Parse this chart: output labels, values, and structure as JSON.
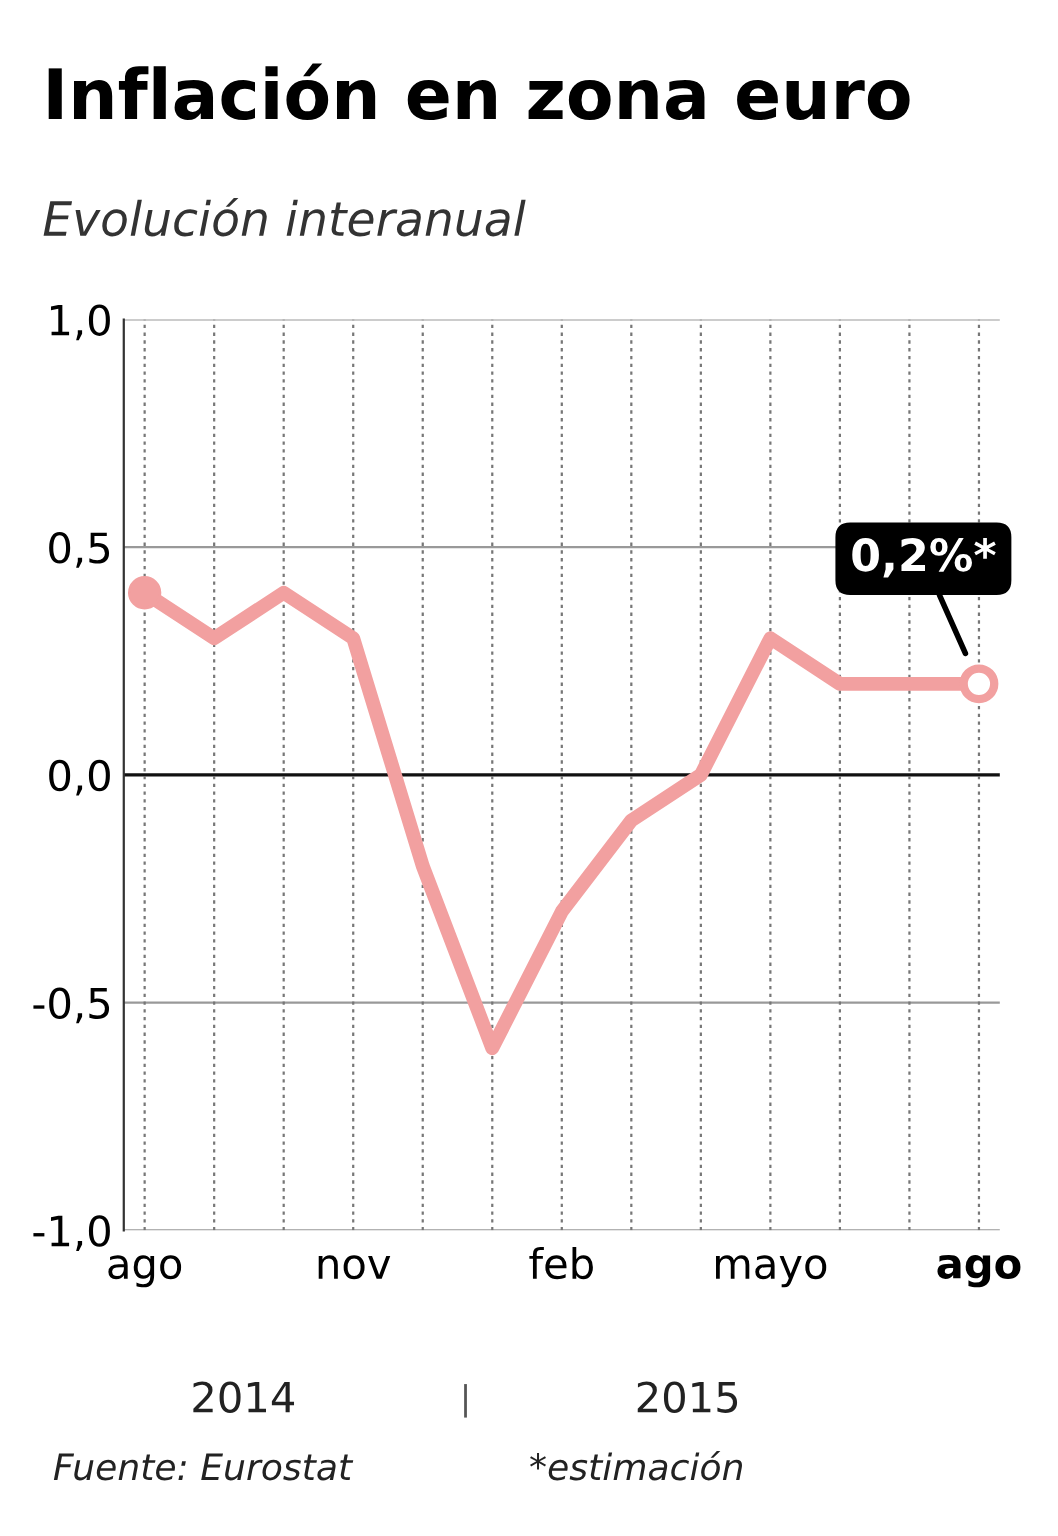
{
  "chart_data": {
    "type": "line",
    "title": "Inflación en zona euro",
    "subtitle": "Evolución interanual",
    "categories": [
      "ago",
      null,
      null,
      "nov",
      null,
      null,
      "feb",
      null,
      null,
      "mayo",
      null,
      null,
      "ago"
    ],
    "series": [
      {
        "color": "#f2a0a0",
        "values": [
          0.4,
          0.3,
          0.4,
          0.3,
          -0.2,
          -0.6,
          -0.3,
          -0.1,
          0.0,
          0.3,
          0.2,
          0.2,
          0.2
        ]
      }
    ],
    "ylim": [
      -1.0,
      1.0
    ],
    "yticks": [
      {
        "value": -1.0,
        "label": "-1,0"
      },
      {
        "value": -0.5,
        "label": "-0,5"
      },
      {
        "value": 0.0,
        "label": "0,0"
      },
      {
        "value": 0.5,
        "label": "0,5"
      },
      {
        "value": 1.0,
        "label": "1,0"
      }
    ],
    "grid": true,
    "line_style": "solid",
    "annotations": [
      "0,2%*",
      "2014",
      "2015",
      "Fuente: Eurostat",
      "*estimación"
    ]
  }
}
